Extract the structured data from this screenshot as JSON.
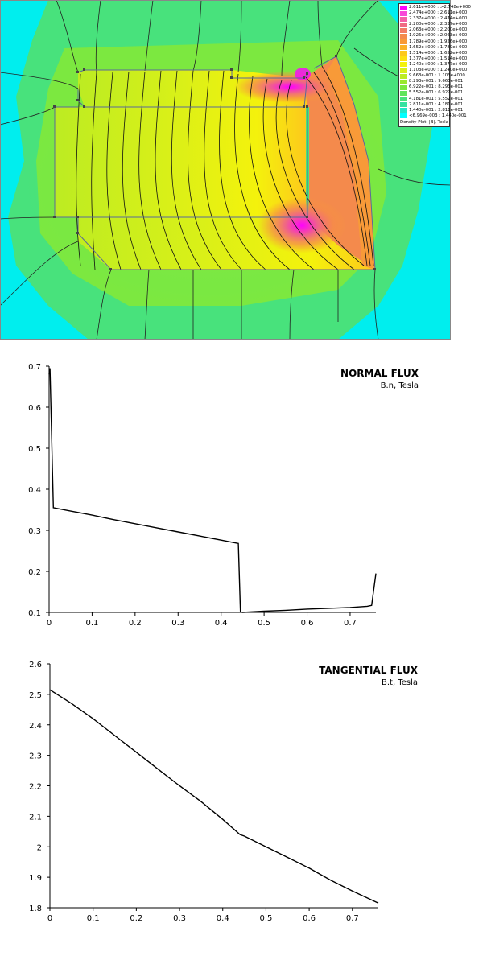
{
  "density_plot": {
    "legend": {
      "rows": [
        {
          "label": "2.611e+000 : >2.748e+000",
          "color": "#ff00ff"
        },
        {
          "label": "2.474e+000 : 2.611e+000",
          "color": "#f848d8"
        },
        {
          "label": "2.337e+000 : 2.474e+000",
          "color": "#f460a8"
        },
        {
          "label": "2.200e+000 : 2.337e+000",
          "color": "#f06a84"
        },
        {
          "label": "2.063e+000 : 2.200e+000",
          "color": "#f27c66"
        },
        {
          "label": "1.926e+000 : 2.063e+000",
          "color": "#f48a4c"
        },
        {
          "label": "1.789e+000 : 1.926e+000",
          "color": "#f89a38"
        },
        {
          "label": "1.652e+000 : 1.789e+000",
          "color": "#fbb228"
        },
        {
          "label": "1.514e+000 : 1.652e+000",
          "color": "#fdc81c"
        },
        {
          "label": "1.377e+000 : 1.514e+000",
          "color": "#fde010"
        },
        {
          "label": "1.240e+000 : 1.377e+000",
          "color": "#f4f20c"
        },
        {
          "label": "1.103e+000 : 1.240e+000",
          "color": "#d9f018"
        },
        {
          "label": "9.663e-001 : 1.103e+000",
          "color": "#bcec22"
        },
        {
          "label": "8.293e-001 : 9.663e-001",
          "color": "#9ae82e"
        },
        {
          "label": "6.922e-001 : 8.293e-001",
          "color": "#7ce840"
        },
        {
          "label": "5.552e-001 : 6.922e-001",
          "color": "#60e45c"
        },
        {
          "label": "4.181e-001 : 5.552e-001",
          "color": "#48e27c"
        },
        {
          "label": "2.811e-001 : 4.181e-001",
          "color": "#36e2a0"
        },
        {
          "label": "1.440e-001 : 2.811e-001",
          "color": "#22e6c6"
        },
        {
          "label": "<6.969e-003 : 1.440e-001",
          "color": "#00ffff"
        }
      ],
      "caption": "Density Plot: |B|, Tesla"
    }
  },
  "chart_data": [
    {
      "type": "line",
      "title": "NORMAL FLUX",
      "subtitle": "B.n, Tesla",
      "xlim": [
        0,
        0.76
      ],
      "ylim": [
        0.1,
        0.7
      ],
      "xticks": [
        0,
        0.1,
        0.2,
        0.3,
        0.4,
        0.5,
        0.6,
        0.7
      ],
      "yticks": [
        0.1,
        0.2,
        0.3,
        0.4,
        0.5,
        0.6,
        0.7
      ],
      "grid": false,
      "series": [
        {
          "x": [
            0,
            0.002,
            0.01,
            0.05,
            0.1,
            0.15,
            0.2,
            0.25,
            0.3,
            0.35,
            0.4,
            0.43,
            0.44,
            0.445,
            0.45,
            0.5,
            0.55,
            0.6,
            0.65,
            0.7,
            0.74,
            0.75,
            0.76
          ],
          "y": [
            0.68,
            0.695,
            0.355,
            0.347,
            0.337,
            0.326,
            0.316,
            0.306,
            0.296,
            0.286,
            0.276,
            0.27,
            0.268,
            0.101,
            0.1,
            0.103,
            0.105,
            0.108,
            0.11,
            0.112,
            0.115,
            0.117,
            0.195
          ]
        }
      ]
    },
    {
      "type": "line",
      "title": "TANGENTIAL FLUX",
      "subtitle": "B.t, Tesla",
      "xlim": [
        0,
        0.76
      ],
      "ylim": [
        1.8,
        2.6
      ],
      "xticks": [
        0,
        0.1,
        0.2,
        0.3,
        0.4,
        0.5,
        0.6,
        0.7
      ],
      "yticks": [
        1.8,
        1.9,
        2,
        2.1,
        2.2,
        2.3,
        2.4,
        2.5,
        2.6
      ],
      "grid": false,
      "series": [
        {
          "x": [
            0,
            0.05,
            0.1,
            0.15,
            0.2,
            0.25,
            0.3,
            0.35,
            0.4,
            0.44,
            0.45,
            0.5,
            0.55,
            0.6,
            0.65,
            0.7,
            0.76
          ],
          "y": [
            2.515,
            2.47,
            2.42,
            2.365,
            2.31,
            2.255,
            2.2,
            2.148,
            2.09,
            2.04,
            2.035,
            2.0,
            1.965,
            1.93,
            1.89,
            1.855,
            1.815
          ]
        }
      ]
    }
  ]
}
